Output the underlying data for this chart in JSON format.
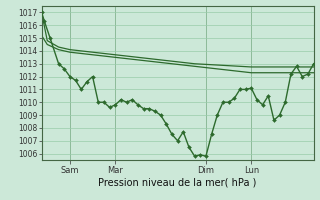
{
  "background_color": "#cce8d8",
  "grid_color": "#99ccaa",
  "line_color": "#2d6a2d",
  "xlabel": "Pression niveau de la mer( hPa )",
  "ylim": [
    1005.5,
    1017.5
  ],
  "yticks": [
    1006,
    1007,
    1008,
    1009,
    1010,
    1011,
    1012,
    1013,
    1014,
    1015,
    1016,
    1017
  ],
  "xlim": [
    0,
    96
  ],
  "x_tick_pos": [
    10,
    26,
    58,
    74
  ],
  "x_tick_labels": [
    "Sam",
    "Mar",
    "Dim",
    "Lun"
  ],
  "smooth1_x": [
    0,
    2,
    6,
    10,
    14,
    18,
    22,
    26,
    30,
    34,
    38,
    42,
    46,
    50,
    54,
    58,
    62,
    66,
    70,
    74,
    78,
    82,
    86,
    90,
    94,
    96
  ],
  "smooth1_y": [
    1017.0,
    1014.8,
    1014.3,
    1014.1,
    1014.0,
    1013.9,
    1013.8,
    1013.7,
    1013.6,
    1013.5,
    1013.4,
    1013.3,
    1013.2,
    1013.1,
    1013.0,
    1012.95,
    1012.9,
    1012.85,
    1012.8,
    1012.75,
    1012.75,
    1012.75,
    1012.75,
    1012.75,
    1012.75,
    1012.75
  ],
  "smooth2_x": [
    0,
    2,
    6,
    10,
    14,
    18,
    22,
    26,
    30,
    34,
    38,
    42,
    46,
    50,
    54,
    58,
    62,
    66,
    70,
    74,
    78,
    82,
    86,
    90,
    94,
    96
  ],
  "smooth2_y": [
    1015.2,
    1014.5,
    1014.1,
    1013.9,
    1013.8,
    1013.7,
    1013.6,
    1013.5,
    1013.4,
    1013.3,
    1013.2,
    1013.1,
    1013.0,
    1012.9,
    1012.8,
    1012.7,
    1012.6,
    1012.5,
    1012.4,
    1012.3,
    1012.3,
    1012.3,
    1012.3,
    1012.3,
    1012.3,
    1012.3
  ],
  "main_x": [
    0,
    1,
    3,
    6,
    8,
    10,
    12,
    14,
    16,
    18,
    20,
    22,
    24,
    26,
    28,
    30,
    32,
    34,
    36,
    38,
    40,
    42,
    44,
    46,
    48,
    50,
    52,
    54,
    56,
    58,
    60,
    62,
    64,
    66,
    68,
    70,
    72,
    74,
    76,
    78,
    80,
    82,
    84,
    86,
    88,
    90,
    92,
    94,
    96
  ],
  "main_y": [
    1017.0,
    1016.3,
    1015.0,
    1013.0,
    1012.6,
    1012.0,
    1011.7,
    1011.0,
    1011.6,
    1012.0,
    1010.0,
    1010.0,
    1009.6,
    1009.8,
    1010.2,
    1010.0,
    1010.2,
    1009.8,
    1009.5,
    1009.5,
    1009.3,
    1009.0,
    1008.3,
    1007.5,
    1007.0,
    1007.7,
    1006.5,
    1005.8,
    1005.9,
    1005.8,
    1007.5,
    1009.0,
    1010.0,
    1010.0,
    1010.3,
    1011.0,
    1011.0,
    1011.1,
    1010.2,
    1009.8,
    1010.5,
    1008.6,
    1009.0,
    1010.0,
    1012.2,
    1012.8,
    1012.0,
    1012.2,
    1013.0
  ]
}
